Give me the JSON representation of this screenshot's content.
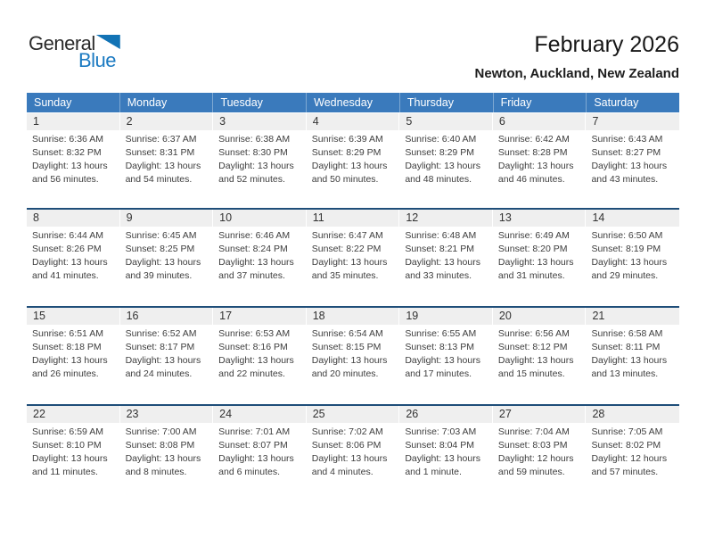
{
  "logo": {
    "word1": "General",
    "word2": "Blue",
    "triangle_color": "#1273b5"
  },
  "header": {
    "title": "February 2026",
    "subtitle": "Newton, Auckland, New Zealand"
  },
  "colors": {
    "header_row_blue": "#3a7abc",
    "week_separator_navy": "#1f4e79",
    "day_number_strip_gray": "#efefef",
    "logo_blue": "#1b7ac2"
  },
  "calendar": {
    "day_headers": [
      "Sunday",
      "Monday",
      "Tuesday",
      "Wednesday",
      "Thursday",
      "Friday",
      "Saturday"
    ],
    "weeks": [
      [
        {
          "n": "1",
          "sunrise": "Sunrise: 6:36 AM",
          "sunset": "Sunset: 8:32 PM",
          "daylight": "Daylight: 13 hours and 56 minutes."
        },
        {
          "n": "2",
          "sunrise": "Sunrise: 6:37 AM",
          "sunset": "Sunset: 8:31 PM",
          "daylight": "Daylight: 13 hours and 54 minutes."
        },
        {
          "n": "3",
          "sunrise": "Sunrise: 6:38 AM",
          "sunset": "Sunset: 8:30 PM",
          "daylight": "Daylight: 13 hours and 52 minutes."
        },
        {
          "n": "4",
          "sunrise": "Sunrise: 6:39 AM",
          "sunset": "Sunset: 8:29 PM",
          "daylight": "Daylight: 13 hours and 50 minutes."
        },
        {
          "n": "5",
          "sunrise": "Sunrise: 6:40 AM",
          "sunset": "Sunset: 8:29 PM",
          "daylight": "Daylight: 13 hours and 48 minutes."
        },
        {
          "n": "6",
          "sunrise": "Sunrise: 6:42 AM",
          "sunset": "Sunset: 8:28 PM",
          "daylight": "Daylight: 13 hours and 46 minutes."
        },
        {
          "n": "7",
          "sunrise": "Sunrise: 6:43 AM",
          "sunset": "Sunset: 8:27 PM",
          "daylight": "Daylight: 13 hours and 43 minutes."
        }
      ],
      [
        {
          "n": "8",
          "sunrise": "Sunrise: 6:44 AM",
          "sunset": "Sunset: 8:26 PM",
          "daylight": "Daylight: 13 hours and 41 minutes."
        },
        {
          "n": "9",
          "sunrise": "Sunrise: 6:45 AM",
          "sunset": "Sunset: 8:25 PM",
          "daylight": "Daylight: 13 hours and 39 minutes."
        },
        {
          "n": "10",
          "sunrise": "Sunrise: 6:46 AM",
          "sunset": "Sunset: 8:24 PM",
          "daylight": "Daylight: 13 hours and 37 minutes."
        },
        {
          "n": "11",
          "sunrise": "Sunrise: 6:47 AM",
          "sunset": "Sunset: 8:22 PM",
          "daylight": "Daylight: 13 hours and 35 minutes."
        },
        {
          "n": "12",
          "sunrise": "Sunrise: 6:48 AM",
          "sunset": "Sunset: 8:21 PM",
          "daylight": "Daylight: 13 hours and 33 minutes."
        },
        {
          "n": "13",
          "sunrise": "Sunrise: 6:49 AM",
          "sunset": "Sunset: 8:20 PM",
          "daylight": "Daylight: 13 hours and 31 minutes."
        },
        {
          "n": "14",
          "sunrise": "Sunrise: 6:50 AM",
          "sunset": "Sunset: 8:19 PM",
          "daylight": "Daylight: 13 hours and 29 minutes."
        }
      ],
      [
        {
          "n": "15",
          "sunrise": "Sunrise: 6:51 AM",
          "sunset": "Sunset: 8:18 PM",
          "daylight": "Daylight: 13 hours and 26 minutes."
        },
        {
          "n": "16",
          "sunrise": "Sunrise: 6:52 AM",
          "sunset": "Sunset: 8:17 PM",
          "daylight": "Daylight: 13 hours and 24 minutes."
        },
        {
          "n": "17",
          "sunrise": "Sunrise: 6:53 AM",
          "sunset": "Sunset: 8:16 PM",
          "daylight": "Daylight: 13 hours and 22 minutes."
        },
        {
          "n": "18",
          "sunrise": "Sunrise: 6:54 AM",
          "sunset": "Sunset: 8:15 PM",
          "daylight": "Daylight: 13 hours and 20 minutes."
        },
        {
          "n": "19",
          "sunrise": "Sunrise: 6:55 AM",
          "sunset": "Sunset: 8:13 PM",
          "daylight": "Daylight: 13 hours and 17 minutes."
        },
        {
          "n": "20",
          "sunrise": "Sunrise: 6:56 AM",
          "sunset": "Sunset: 8:12 PM",
          "daylight": "Daylight: 13 hours and 15 minutes."
        },
        {
          "n": "21",
          "sunrise": "Sunrise: 6:58 AM",
          "sunset": "Sunset: 8:11 PM",
          "daylight": "Daylight: 13 hours and 13 minutes."
        }
      ],
      [
        {
          "n": "22",
          "sunrise": "Sunrise: 6:59 AM",
          "sunset": "Sunset: 8:10 PM",
          "daylight": "Daylight: 13 hours and 11 minutes."
        },
        {
          "n": "23",
          "sunrise": "Sunrise: 7:00 AM",
          "sunset": "Sunset: 8:08 PM",
          "daylight": "Daylight: 13 hours and 8 minutes."
        },
        {
          "n": "24",
          "sunrise": "Sunrise: 7:01 AM",
          "sunset": "Sunset: 8:07 PM",
          "daylight": "Daylight: 13 hours and 6 minutes."
        },
        {
          "n": "25",
          "sunrise": "Sunrise: 7:02 AM",
          "sunset": "Sunset: 8:06 PM",
          "daylight": "Daylight: 13 hours and 4 minutes."
        },
        {
          "n": "26",
          "sunrise": "Sunrise: 7:03 AM",
          "sunset": "Sunset: 8:04 PM",
          "daylight": "Daylight: 13 hours and 1 minute."
        },
        {
          "n": "27",
          "sunrise": "Sunrise: 7:04 AM",
          "sunset": "Sunset: 8:03 PM",
          "daylight": "Daylight: 12 hours and 59 minutes."
        },
        {
          "n": "28",
          "sunrise": "Sunrise: 7:05 AM",
          "sunset": "Sunset: 8:02 PM",
          "daylight": "Daylight: 12 hours and 57 minutes."
        }
      ]
    ]
  }
}
